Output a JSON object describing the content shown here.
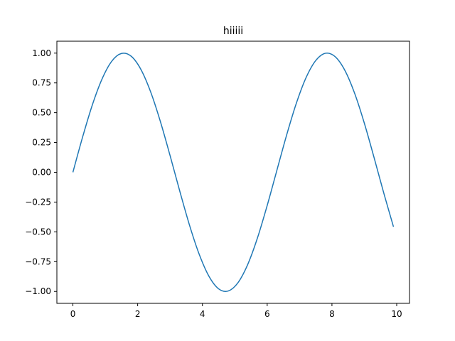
{
  "chart_data": {
    "type": "line",
    "title": "hiiiii",
    "xlabel": "",
    "ylabel": "",
    "xlim": [
      -0.495,
      10.395
    ],
    "ylim": [
      -1.1,
      1.1
    ],
    "xticks": [
      0,
      2,
      4,
      6,
      8,
      10
    ],
    "xtick_labels": [
      "0",
      "2",
      "4",
      "6",
      "8",
      "10"
    ],
    "yticks": [
      -1.0,
      -0.75,
      -0.5,
      -0.25,
      0.0,
      0.25,
      0.5,
      0.75,
      1.0
    ],
    "ytick_labels": [
      "−1.00",
      "−0.75",
      "−0.50",
      "−0.25",
      "0.00",
      "0.25",
      "0.50",
      "0.75",
      "1.00"
    ],
    "grid": false,
    "series": [
      {
        "color": "#1f77b4",
        "x": [
          0,
          0.3,
          0.6,
          0.9,
          1.2,
          1.5,
          1.8,
          2.1,
          2.4,
          2.7,
          3.0,
          3.3,
          3.6,
          3.9,
          4.2,
          4.5,
          4.8,
          5.1,
          5.4,
          5.7,
          6.0,
          6.3,
          6.6,
          6.9,
          7.2,
          7.5,
          7.8,
          8.1,
          8.4,
          8.7,
          9.0,
          9.3,
          9.6,
          9.9
        ],
        "y": [
          0.0,
          0.296,
          0.565,
          0.783,
          0.932,
          0.997,
          0.974,
          0.863,
          0.675,
          0.427,
          0.141,
          -0.158,
          -0.443,
          -0.688,
          -0.872,
          -0.978,
          -0.996,
          -0.926,
          -0.773,
          -0.551,
          -0.279,
          0.017,
          0.312,
          0.579,
          0.794,
          0.938,
          0.999,
          0.97,
          0.855,
          0.663,
          0.412,
          0.124,
          -0.174,
          -0.457
        ]
      }
    ]
  }
}
